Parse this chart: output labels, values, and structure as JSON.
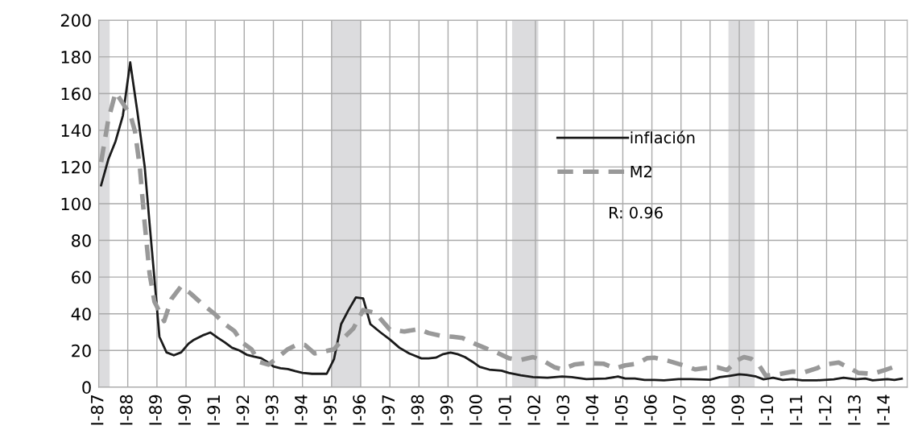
{
  "chart_data": {
    "type": "line",
    "xlim": [
      "1987-01-01",
      "2014-10-09"
    ],
    "xticks": [
      {
        "value": "1987-01-01",
        "label": "I-87"
      },
      {
        "value": "1988-01-01",
        "label": "I-88"
      },
      {
        "value": "1989-01-01",
        "label": "I-89"
      },
      {
        "value": "1990-01-01",
        "label": "I-90"
      },
      {
        "value": "1991-01-01",
        "label": "I-91"
      },
      {
        "value": "1992-01-01",
        "label": "I-92"
      },
      {
        "value": "1993-01-01",
        "label": "I-93"
      },
      {
        "value": "1994-01-01",
        "label": "I-94"
      },
      {
        "value": "1995-01-01",
        "label": "I-95"
      },
      {
        "value": "1996-01-01",
        "label": "I-96"
      },
      {
        "value": "1997-01-01",
        "label": "I-97"
      },
      {
        "value": "1998-01-01",
        "label": "I-98"
      },
      {
        "value": "1999-01-01",
        "label": "I-99"
      },
      {
        "value": "2000-01-01",
        "label": "I-00"
      },
      {
        "value": "2001-01-01",
        "label": "I-01"
      },
      {
        "value": "2002-01-01",
        "label": "I-02"
      },
      {
        "value": "2003-01-01",
        "label": "I-03"
      },
      {
        "value": "2004-01-01",
        "label": "I-04"
      },
      {
        "value": "2005-01-01",
        "label": "I-05"
      },
      {
        "value": "2006-01-01",
        "label": "I-06"
      },
      {
        "value": "2007-01-01",
        "label": "I-07"
      },
      {
        "value": "2008-01-01",
        "label": "I-08"
      },
      {
        "value": "2009-01-01",
        "label": "I-09"
      },
      {
        "value": "2010-01-01",
        "label": "I-10"
      },
      {
        "value": "2011-01-01",
        "label": "I-11"
      },
      {
        "value": "2012-01-01",
        "label": "I-12"
      },
      {
        "value": "2013-01-01",
        "label": "I-13"
      },
      {
        "value": "2014-01-01",
        "label": "I-14"
      }
    ],
    "ylim": [
      0,
      200
    ],
    "yticks": [
      0,
      20,
      40,
      60,
      80,
      100,
      120,
      140,
      160,
      180,
      200
    ],
    "grid": true,
    "legend": "center right",
    "annotations": [
      "R: 0.96"
    ],
    "bands": [
      {
        "axis": "x",
        "from": "1987-01-01",
        "to": "1987-05-19",
        "color": "#dcdcde"
      },
      {
        "axis": "x",
        "from": "1995-01-01",
        "to": "1996-01-01",
        "color": "#dcdcde"
      },
      {
        "axis": "x",
        "from": "2001-03-14",
        "to": "2002-02-06",
        "color": "#dcdcde"
      },
      {
        "axis": "x",
        "from": "2008-08-18",
        "to": "2009-07-13",
        "color": "#dcdcde"
      }
    ],
    "series": [
      {
        "name": "inflación",
        "color": "#1a1a1a",
        "line_style": "solid",
        "x": [
          "1987-02",
          "1987-05",
          "1987-08",
          "1987-11",
          "1988-02",
          "1988-05",
          "1988-08",
          "1988-10",
          "1988-12",
          "1989-02",
          "1989-05",
          "1989-08",
          "1989-11",
          "1990-02",
          "1990-04",
          "1990-08",
          "1990-11",
          "1991-02",
          "1991-05",
          "1991-08",
          "1991-11",
          "1992-02",
          "1992-05",
          "1992-08",
          "1992-11",
          "1993-01",
          "1993-04",
          "1993-07",
          "1993-10",
          "1994-01",
          "1994-05",
          "1994-08",
          "1994-11",
          "1995-02",
          "1995-05",
          "1995-08",
          "1995-11",
          "1996-02",
          "1996-05",
          "1996-09",
          "1997-01",
          "1997-05",
          "1997-09",
          "1998-02",
          "1998-05",
          "1998-08",
          "1998-11",
          "1999-02",
          "1999-05",
          "1999-08",
          "1999-11",
          "2000-02",
          "2000-06",
          "2000-11",
          "2001-02",
          "2001-07",
          "2001-12",
          "2002-06",
          "2002-12",
          "2003-04",
          "2003-10",
          "2004-03",
          "2004-06",
          "2004-11",
          "2005-02",
          "2005-06",
          "2005-10",
          "2006-02",
          "2006-06",
          "2006-12",
          "2007-05",
          "2008-01",
          "2008-05",
          "2008-09",
          "2009-01",
          "2009-04",
          "2009-08",
          "2009-11",
          "2010-03",
          "2010-07",
          "2010-11",
          "2011-03",
          "2011-09",
          "2012-04",
          "2012-08",
          "2013-01",
          "2013-05",
          "2013-08",
          "2014-02",
          "2014-05",
          "2014-08"
        ],
        "values": [
          110,
          124,
          134,
          148,
          177,
          150,
          120,
          89,
          59,
          27.5,
          19,
          17.4,
          19,
          23.7,
          25.6,
          28.3,
          29.8,
          27,
          24.5,
          21.5,
          20,
          17.7,
          16.7,
          15.8,
          13.4,
          11.3,
          10.3,
          9.9,
          8.8,
          7.8,
          7.3,
          7.3,
          7.3,
          15.4,
          34.4,
          42,
          48.9,
          48.4,
          34.4,
          30,
          26,
          21.5,
          18.4,
          15.7,
          15.7,
          16.1,
          18,
          18.9,
          18,
          16.4,
          13.9,
          11.1,
          9.6,
          9,
          7.8,
          6.5,
          5.5,
          5.2,
          5.8,
          5.5,
          4.4,
          4.6,
          4.7,
          5.8,
          4.7,
          4.7,
          4,
          4,
          3.7,
          4.4,
          4.4,
          4.1,
          5.5,
          6.2,
          7,
          6.7,
          5.8,
          4.3,
          5.2,
          4,
          4.4,
          3.7,
          3.7,
          4.3,
          5.2,
          4.3,
          4.7,
          3.7,
          4.4,
          4,
          4.6
        ]
      },
      {
        "name": "M2",
        "color": "#999999",
        "line_style": "dashed",
        "x": [
          "1987-02",
          "1987-05",
          "1987-08",
          "1987-11",
          "1988-02",
          "1988-04",
          "1988-06",
          "1988-08",
          "1988-10",
          "1988-12",
          "1989-04",
          "1989-07",
          "1989-11",
          "1990-03",
          "1990-08",
          "1991-01",
          "1991-05",
          "1991-09",
          "1991-12",
          "1992-04",
          "1992-07",
          "1992-11",
          "1993-02",
          "1993-07",
          "1993-11",
          "1994-02",
          "1994-06",
          "1994-10",
          "1995-02",
          "1995-06",
          "1995-10",
          "1996-02",
          "1996-03",
          "1996-07",
          "1996-10",
          "1997-01",
          "1997-07",
          "1998-01",
          "1998-05",
          "1998-10",
          "1999-03",
          "1999-07",
          "1999-12",
          "2000-04",
          "2000-09",
          "2001-02",
          "2001-07",
          "2001-12",
          "2002-05",
          "2002-09",
          "2002-12",
          "2003-05",
          "2003-10",
          "2004-05",
          "2004-10",
          "2005-02",
          "2005-07",
          "2005-11",
          "2006-02",
          "2006-08",
          "2007-01",
          "2007-07",
          "2007-10",
          "2008-04",
          "2008-08",
          "2008-12",
          "2009-03",
          "2009-06",
          "2009-09",
          "2009-12",
          "2010-05",
          "2010-11",
          "2011-04",
          "2011-09",
          "2011-12",
          "2012-06",
          "2012-10",
          "2013-02",
          "2013-08",
          "2014-01",
          "2014-06"
        ],
        "values": [
          122.7,
          145.5,
          160.7,
          154.6,
          148.6,
          139.4,
          119.6,
          89,
          61.8,
          46.6,
          36,
          48,
          55,
          51,
          45,
          39.7,
          34.4,
          30.6,
          24.5,
          20.7,
          13.9,
          12.3,
          15.4,
          20.7,
          23.4,
          23,
          18.4,
          19.5,
          20.7,
          26.8,
          32,
          42,
          41.7,
          40.5,
          36,
          31.4,
          30.3,
          31.7,
          29.5,
          28,
          27.5,
          26.8,
          23.7,
          21.5,
          18.9,
          15.8,
          14.9,
          16.4,
          13.9,
          10.8,
          9.7,
          12.3,
          13.1,
          12.8,
          10.3,
          11.9,
          12.8,
          15.8,
          16.1,
          14.3,
          12.3,
          9.7,
          10.3,
          10.8,
          9.3,
          14.6,
          16.4,
          15.4,
          12.3,
          6.2,
          7,
          8.5,
          8.2,
          10.3,
          12.3,
          13.4,
          10.8,
          7.8,
          7.3,
          9.3,
          11.6
        ]
      }
    ]
  }
}
